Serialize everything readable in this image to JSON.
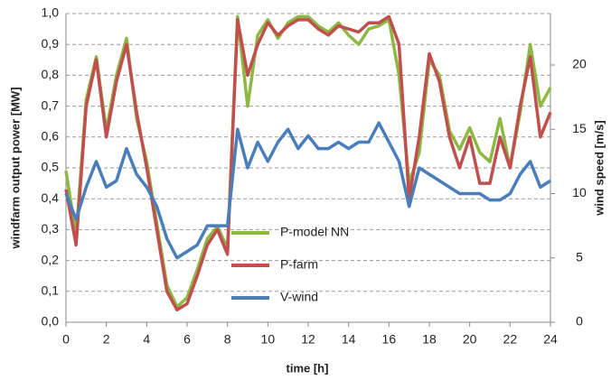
{
  "chart_data": {
    "type": "line",
    "x_label": "time [h]",
    "y_label": "windfarm output power [MW]",
    "y2_label": "wind speed [m/s]",
    "x": [
      0,
      0.5,
      1,
      1.5,
      2,
      2.5,
      3,
      3.5,
      4,
      4.5,
      5,
      5.5,
      6,
      6.5,
      7,
      7.5,
      8,
      8.5,
      9,
      9.5,
      10,
      10.5,
      11,
      11.5,
      12,
      12.5,
      13,
      13.5,
      14,
      14.5,
      15,
      15.5,
      16,
      16.5,
      17,
      17.5,
      18,
      18.5,
      19,
      19.5,
      20,
      20.5,
      21,
      21.5,
      22,
      22.5,
      23,
      23.5,
      24
    ],
    "series": [
      {
        "name": "P-model NN",
        "color": "#8db843",
        "values": [
          0.49,
          0.28,
          0.72,
          0.86,
          0.62,
          0.8,
          0.92,
          0.66,
          0.52,
          0.32,
          0.12,
          0.05,
          0.08,
          0.17,
          0.27,
          0.31,
          0.24,
          0.99,
          0.7,
          0.93,
          0.98,
          0.92,
          0.97,
          0.99,
          0.99,
          0.96,
          0.94,
          0.97,
          0.93,
          0.9,
          0.95,
          0.96,
          0.98,
          0.8,
          0.45,
          0.55,
          0.85,
          0.8,
          0.62,
          0.56,
          0.63,
          0.55,
          0.52,
          0.66,
          0.5,
          0.68,
          0.9,
          0.7,
          0.76
        ]
      },
      {
        "name": "P-farm",
        "color": "#c0504d",
        "values": [
          0.43,
          0.25,
          0.7,
          0.85,
          0.6,
          0.78,
          0.9,
          0.68,
          0.5,
          0.3,
          0.1,
          0.04,
          0.06,
          0.15,
          0.25,
          0.3,
          0.22,
          0.98,
          0.8,
          0.9,
          0.97,
          0.93,
          0.96,
          0.98,
          0.98,
          0.95,
          0.93,
          0.96,
          0.95,
          0.94,
          0.97,
          0.97,
          0.99,
          0.9,
          0.4,
          0.6,
          0.87,
          0.78,
          0.6,
          0.5,
          0.6,
          0.45,
          0.45,
          0.6,
          0.5,
          0.7,
          0.86,
          0.6,
          0.68
        ]
      },
      {
        "name": "V-wind",
        "color": "#4a7ebb",
        "axis": "y2",
        "values": [
          10,
          8,
          10.5,
          12.5,
          10.5,
          11,
          13.5,
          11.5,
          10.5,
          9,
          6.5,
          5,
          5.5,
          6,
          7.5,
          7.5,
          7.5,
          15,
          12,
          14,
          12.5,
          14,
          15,
          13.5,
          14.5,
          13.5,
          13.5,
          14,
          13.5,
          14,
          14,
          15.5,
          14,
          12.5,
          9,
          12,
          11.5,
          11,
          10.5,
          10,
          10,
          10,
          9.5,
          9.5,
          10,
          11.5,
          12.5,
          10.5,
          11
        ]
      }
    ],
    "xlim": [
      0,
      24
    ],
    "xticks": [
      0,
      2,
      4,
      6,
      8,
      10,
      12,
      14,
      16,
      18,
      20,
      22,
      24
    ],
    "ylim": [
      0,
      1
    ],
    "yticks": [
      {
        "value": 0,
        "label": "0,0"
      },
      {
        "value": 0.1,
        "label": "0,1"
      },
      {
        "value": 0.2,
        "label": "0,2"
      },
      {
        "value": 0.3,
        "label": "0,3"
      },
      {
        "value": 0.4,
        "label": "0,4"
      },
      {
        "value": 0.5,
        "label": "0,5"
      },
      {
        "value": 0.6,
        "label": "0,6"
      },
      {
        "value": 0.7,
        "label": "0,7"
      },
      {
        "value": 0.8,
        "label": "0,8"
      },
      {
        "value": 0.9,
        "label": "0,9"
      },
      {
        "value": 1,
        "label": "1,0"
      }
    ],
    "y2lim": [
      0,
      24
    ],
    "y2ticks": [
      0,
      5,
      10,
      15,
      20
    ],
    "grid": true
  }
}
